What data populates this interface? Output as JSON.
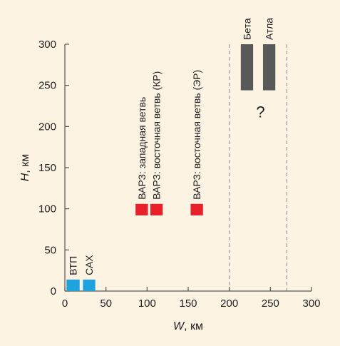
{
  "chart_data": {
    "type": "bar",
    "xlabel_var": "W",
    "xlabel_unit": ", км",
    "ylabel_var": "H",
    "ylabel_unit": ", км",
    "xlim": [
      0,
      300
    ],
    "ylim": [
      0,
      300
    ],
    "xticks": [
      0,
      50,
      100,
      150,
      200,
      250,
      300
    ],
    "yticks": [
      0,
      50,
      100,
      150,
      200,
      250,
      300
    ],
    "grid": false,
    "colors": {
      "blue": "#1fa3df",
      "red": "#e8202a",
      "gray": "#595959",
      "axis": "#555555",
      "dashed": "#999999"
    },
    "marks": [
      {
        "label": "ВТП",
        "x0": 2,
        "x1": 18,
        "y0": 0,
        "y1": 14,
        "color": "blue"
      },
      {
        "label": "САХ",
        "x0": 22,
        "x1": 37,
        "y0": 0,
        "y1": 14,
        "color": "blue"
      },
      {
        "label": "ВАРЗ: западная ветвь",
        "x0": 86,
        "x1": 101,
        "y0": 92,
        "y1": 106,
        "color": "red"
      },
      {
        "label": "ВАРЗ: восточная ветвь (КР)",
        "x0": 104,
        "x1": 119,
        "y0": 92,
        "y1": 106,
        "color": "red"
      },
      {
        "label": "ВАРЗ: восточная ветвь (ЭР)",
        "x0": 153,
        "x1": 168,
        "y0": 92,
        "y1": 106,
        "color": "red"
      },
      {
        "label": "Бета",
        "x0": 214,
        "x1": 229,
        "y0": 244,
        "y1": 300,
        "color": "gray"
      },
      {
        "label": "Атла",
        "x0": 241,
        "x1": 256,
        "y0": 244,
        "y1": 300,
        "color": "gray"
      }
    ],
    "dashed_lines_x": [
      200,
      270
    ],
    "unknown_marker": {
      "text": "?",
      "x": 238,
      "y": 218
    }
  }
}
